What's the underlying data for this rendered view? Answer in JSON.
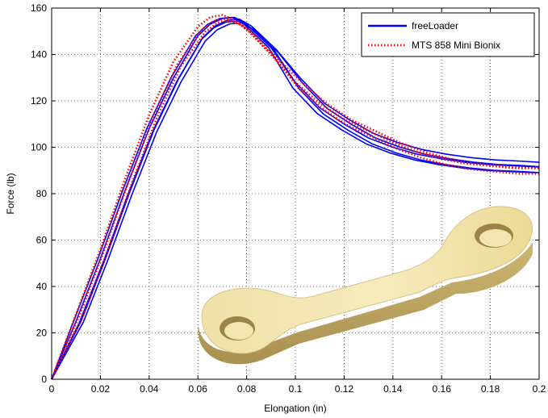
{
  "chart_data": {
    "type": "line",
    "xlabel": "Elongation (in)",
    "ylabel": "Force (lb)",
    "xlim": [
      0,
      0.2
    ],
    "ylim": [
      0,
      160
    ],
    "xticks": [
      "0",
      "0.02",
      "0.04",
      "0.06",
      "0.08",
      "0.1",
      "0.12",
      "0.14",
      "0.16",
      "0.18",
      "0.2"
    ],
    "yticks": [
      "0",
      "20",
      "40",
      "60",
      "80",
      "100",
      "120",
      "140",
      "160"
    ],
    "grid": true,
    "legend_position": "top-right",
    "series": [
      {
        "name": "freeLoader",
        "color": "#0000ff",
        "style": "solid",
        "x": [
          0,
          0.01,
          0.02,
          0.03,
          0.04,
          0.05,
          0.06,
          0.065,
          0.07,
          0.075,
          0.08,
          0.09,
          0.1,
          0.11,
          0.12,
          0.13,
          0.14,
          0.15,
          0.16,
          0.17,
          0.18,
          0.19,
          0.2
        ],
        "y": [
          0,
          25,
          52,
          81,
          108,
          130,
          148,
          153,
          155.5,
          156,
          153,
          143,
          128,
          117,
          110,
          104,
          100,
          97,
          95,
          93.5,
          92.5,
          92,
          91.5
        ]
      },
      {
        "name": "MTS 858 Mini Bionix",
        "color": "#ff0000",
        "style": "dotted",
        "x": [
          0,
          0.01,
          0.02,
          0.03,
          0.04,
          0.05,
          0.06,
          0.065,
          0.07,
          0.075,
          0.08,
          0.09,
          0.1,
          0.11,
          0.12,
          0.13,
          0.14,
          0.15,
          0.16,
          0.17,
          0.18,
          0.19,
          0.2
        ],
        "y": [
          0,
          28,
          56,
          86,
          114,
          137,
          152,
          156,
          157,
          155,
          151,
          140,
          128,
          119,
          112,
          107,
          102,
          98,
          95,
          93,
          92,
          91,
          91
        ]
      }
    ]
  }
}
